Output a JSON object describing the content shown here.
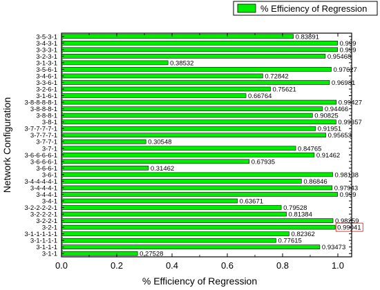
{
  "chart_data": {
    "type": "bar",
    "orientation": "horizontal",
    "title": "",
    "xlabel": "% Efficiency of Regression",
    "ylabel": "Network Configuration",
    "xlim": [
      0,
      1.05
    ],
    "xticks": [
      "0.0",
      "0.2",
      "0.4",
      "0.6",
      "0.8",
      "1.0"
    ],
    "xtick_values": [
      0,
      0.2,
      0.4,
      0.6,
      0.8,
      1.0
    ],
    "grid": false,
    "legend": {
      "label": "% Efficiency of Regression",
      "placement": "top-right"
    },
    "bar_color": "#00ee00",
    "bar_edge_color": "#000000",
    "highlight_color": "#ff0000",
    "series": [
      {
        "name": "% Efficiency of Regression",
        "categories": [
          "3-1-1",
          "3-1-1-1",
          "3-1-1-1-1",
          "3-1-1-1-1-1",
          "3-2-1",
          "3-2-2-1",
          "3-2-2-2-1",
          "3-2-2-2-2-1",
          "3-4-1",
          "3-4-4-1",
          "3-4-4-4-1",
          "3-4-4-4-4-1",
          "3-6-1",
          "3-6-6-1",
          "3-6-6-6-1",
          "3-6-6-6-6-1",
          "3-7-1",
          "3-7-7-1",
          "3-7-7-7-1",
          "3-7-7-7-7-1",
          "3-8-1",
          "3-8-8-1",
          "3-8-8-8-1",
          "3-8-8-8-8-1",
          "3-1-6-1",
          "3-2-6-1",
          "3-3-6-1",
          "3-4-6-1",
          "3-5-6-1",
          "3-1-3-1",
          "3-2-3-1",
          "3-3-3-1",
          "3-4-3-1",
          "3-5-3-1"
        ],
        "values": [
          0.27528,
          0.93473,
          0.77615,
          0.82362,
          0.99041,
          0.98259,
          0.81384,
          0.79528,
          0.63671,
          0.999,
          0.97943,
          0.86846,
          0.98138,
          0.31462,
          0.67935,
          0.91462,
          0.84765,
          0.30548,
          0.95653,
          0.91951,
          0.99357,
          0.90825,
          0.94466,
          0.99427,
          0.66764,
          0.75621,
          0.96981,
          0.72842,
          0.97627,
          0.38532,
          0.95468,
          0.999,
          0.999,
          0.83891
        ],
        "value_labels": [
          "0.27528",
          "0.93473",
          "0.77615",
          "0.82362",
          "0.99041",
          "0.98259",
          "0.81384",
          "0.79528",
          "0.63671",
          "0.999",
          "0.97943",
          "0.86846",
          "0.98138",
          "0.31462",
          "0.67935",
          "0.91462",
          "0.84765",
          "0.30548",
          "0.95653",
          "0.91951",
          "0.99357",
          "0.90825",
          "0.94466",
          "0.99427",
          "0.66764",
          "0.75621",
          "0.96981",
          "0.72842",
          "0.97627",
          "0.38532",
          "0.95468",
          "0.999",
          "0.999",
          "0.83891"
        ],
        "highlighted_label": "0.99041"
      }
    ]
  }
}
